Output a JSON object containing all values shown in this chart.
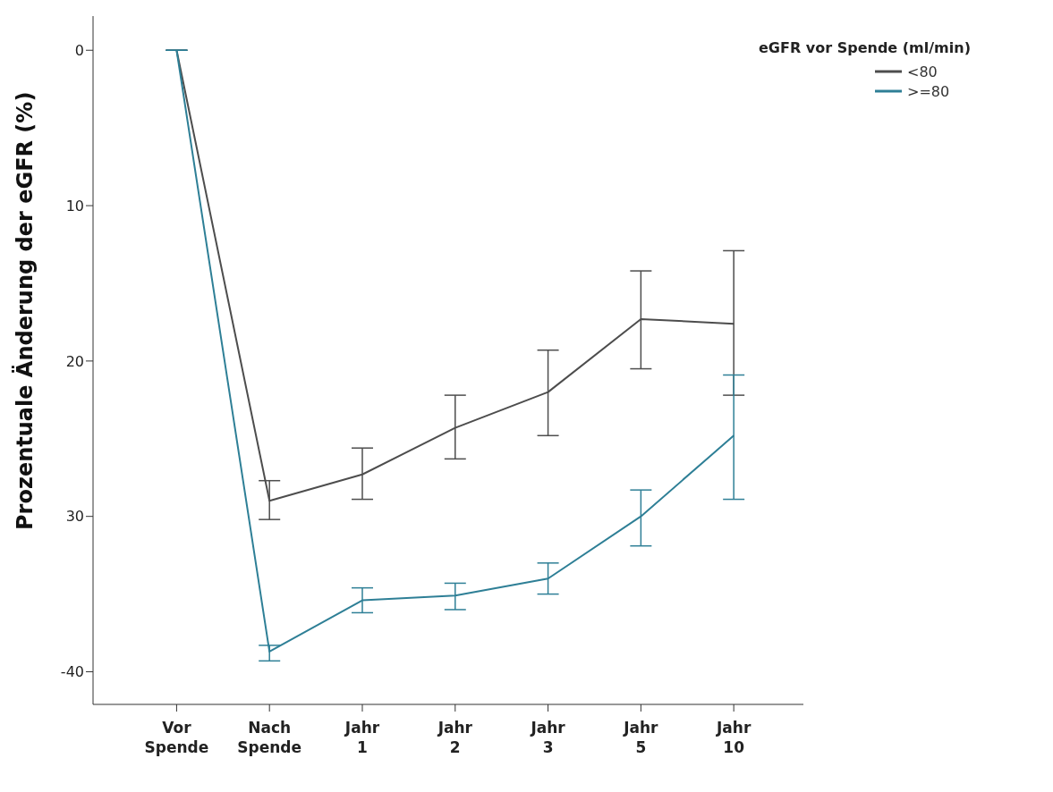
{
  "chart_data": {
    "type": "line",
    "categories": [
      "Vor Spende",
      "Nach Spende",
      "Jahr 1",
      "Jahr 2",
      "Jahr 3",
      "Jahr 5",
      "Jahr 10"
    ],
    "ylabel": "Prozentuale Änderung der eGFR (%)",
    "legend_title": "eGFR vor Spende (ml/min)",
    "series": [
      {
        "name": "<80",
        "color": "#4d4d4d",
        "values": [
          0,
          -29.0,
          -27.3,
          -24.3,
          -22.0,
          -17.3,
          -17.6
        ],
        "errors": [
          [
            0,
            0
          ],
          [
            -30.2,
            -27.7
          ],
          [
            -28.9,
            -25.6
          ],
          [
            -26.3,
            -22.2
          ],
          [
            -24.8,
            -19.3
          ],
          [
            -20.5,
            -14.2
          ],
          [
            -22.2,
            -12.9
          ]
        ]
      },
      {
        "name": ">=80",
        "color": "#2e7f96",
        "values": [
          0,
          -38.7,
          -35.4,
          -35.1,
          -34.0,
          -30.0,
          -24.8
        ],
        "errors": [
          [
            0,
            0
          ],
          [
            -39.3,
            -38.3
          ],
          [
            -36.2,
            -34.6
          ],
          [
            -36.0,
            -34.3
          ],
          [
            -35.0,
            -33.0
          ],
          [
            -31.9,
            -28.3
          ],
          [
            -28.9,
            -20.9
          ]
        ]
      }
    ],
    "ylim": [
      -42.1,
      2.2
    ],
    "yticks": [
      {
        "value": 0,
        "label": "0"
      },
      {
        "value": -10,
        "label": "10"
      },
      {
        "value": -20,
        "label": "20"
      },
      {
        "value": -30,
        "label": "30"
      },
      {
        "value": -40,
        "label": "-40"
      }
    ],
    "grid": false,
    "legend": "top right",
    "marker": "none",
    "line_style": "solid"
  }
}
